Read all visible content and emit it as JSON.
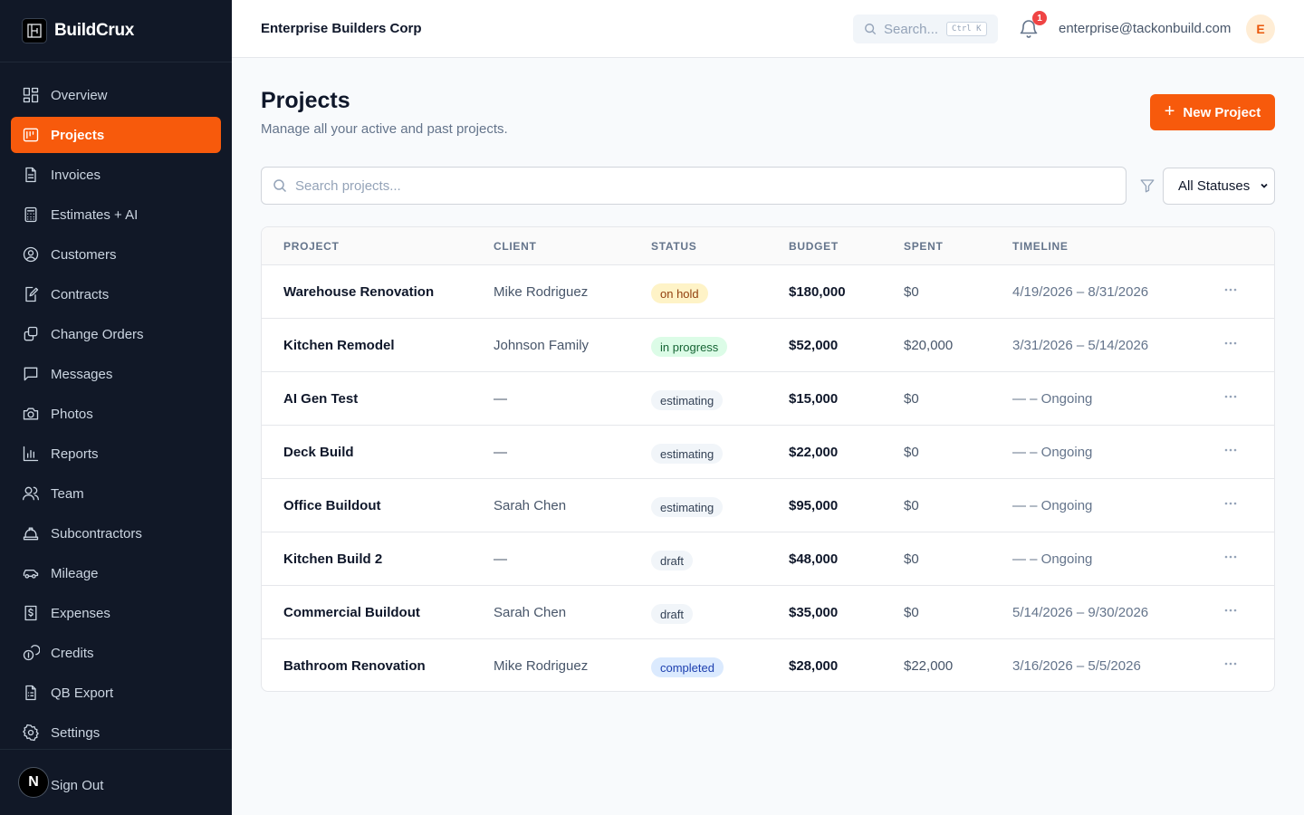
{
  "brand": {
    "name": "BuildCrux"
  },
  "sidebar": {
    "items": [
      {
        "label": "Overview",
        "icon": "grid-icon"
      },
      {
        "label": "Projects",
        "icon": "projects-icon",
        "active": true
      },
      {
        "label": "Invoices",
        "icon": "invoice-icon"
      },
      {
        "label": "Estimates + AI",
        "icon": "calculator-icon"
      },
      {
        "label": "Customers",
        "icon": "user-circle-icon"
      },
      {
        "label": "Contracts",
        "icon": "contract-icon"
      },
      {
        "label": "Change Orders",
        "icon": "layers-icon"
      },
      {
        "label": "Messages",
        "icon": "message-icon"
      },
      {
        "label": "Photos",
        "icon": "camera-icon"
      },
      {
        "label": "Reports",
        "icon": "bar-chart-icon"
      },
      {
        "label": "Team",
        "icon": "team-icon"
      },
      {
        "label": "Subcontractors",
        "icon": "hard-hat-icon"
      },
      {
        "label": "Mileage",
        "icon": "car-icon"
      },
      {
        "label": "Expenses",
        "icon": "receipt-dollar-icon"
      },
      {
        "label": "Credits",
        "icon": "coins-icon"
      },
      {
        "label": "QB Export",
        "icon": "file-export-icon"
      },
      {
        "label": "Settings",
        "icon": "gear-icon"
      }
    ],
    "footer": {
      "badge": "N",
      "signout_label": "Sign Out"
    }
  },
  "topbar": {
    "company": "Enterprise Builders Corp",
    "search_placeholder": "Search...",
    "shortcut": "Ctrl K",
    "notification_count": "1",
    "user_email": "enterprise@tackonbuild.com",
    "avatar_initial": "E"
  },
  "page": {
    "title": "Projects",
    "subtitle": "Manage all your active and past projects.",
    "new_button_label": "New Project",
    "search_placeholder": "Search projects...",
    "status_filter": "All Statuses"
  },
  "table": {
    "headers": [
      "PROJECT",
      "CLIENT",
      "STATUS",
      "BUDGET",
      "SPENT",
      "TIMELINE"
    ],
    "rows": [
      {
        "project": "Warehouse Renovation",
        "client": "Mike Rodriguez",
        "status": "on hold",
        "status_kind": "hold",
        "budget": "$180,000",
        "spent": "$0",
        "timeline": "4/19/2026 – 8/31/2026"
      },
      {
        "project": "Kitchen Remodel",
        "client": "Johnson Family",
        "status": "in progress",
        "status_kind": "prog",
        "budget": "$52,000",
        "spent": "$20,000",
        "timeline": "3/31/2026 – 5/14/2026"
      },
      {
        "project": "AI Gen Test",
        "client": "—",
        "status": "estimating",
        "status_kind": "est",
        "budget": "$15,000",
        "spent": "$0",
        "timeline": "— – Ongoing"
      },
      {
        "project": "Deck Build",
        "client": "—",
        "status": "estimating",
        "status_kind": "est",
        "budget": "$22,000",
        "spent": "$0",
        "timeline": "— – Ongoing"
      },
      {
        "project": "Office Buildout",
        "client": "Sarah Chen",
        "status": "estimating",
        "status_kind": "est",
        "budget": "$95,000",
        "spent": "$0",
        "timeline": "— – Ongoing"
      },
      {
        "project": "Kitchen Build 2",
        "client": "—",
        "status": "draft",
        "status_kind": "draft",
        "budget": "$48,000",
        "spent": "$0",
        "timeline": "— – Ongoing"
      },
      {
        "project": "Commercial Buildout",
        "client": "Sarah Chen",
        "status": "draft",
        "status_kind": "draft",
        "budget": "$35,000",
        "spent": "$0",
        "timeline": "5/14/2026 – 9/30/2026"
      },
      {
        "project": "Bathroom Renovation",
        "client": "Mike Rodriguez",
        "status": "completed",
        "status_kind": "done",
        "budget": "$28,000",
        "spent": "$22,000",
        "timeline": "3/16/2026 – 5/5/2026"
      }
    ]
  },
  "colors": {
    "accent": "#f75a0c",
    "sidebar_bg": "#111827"
  }
}
